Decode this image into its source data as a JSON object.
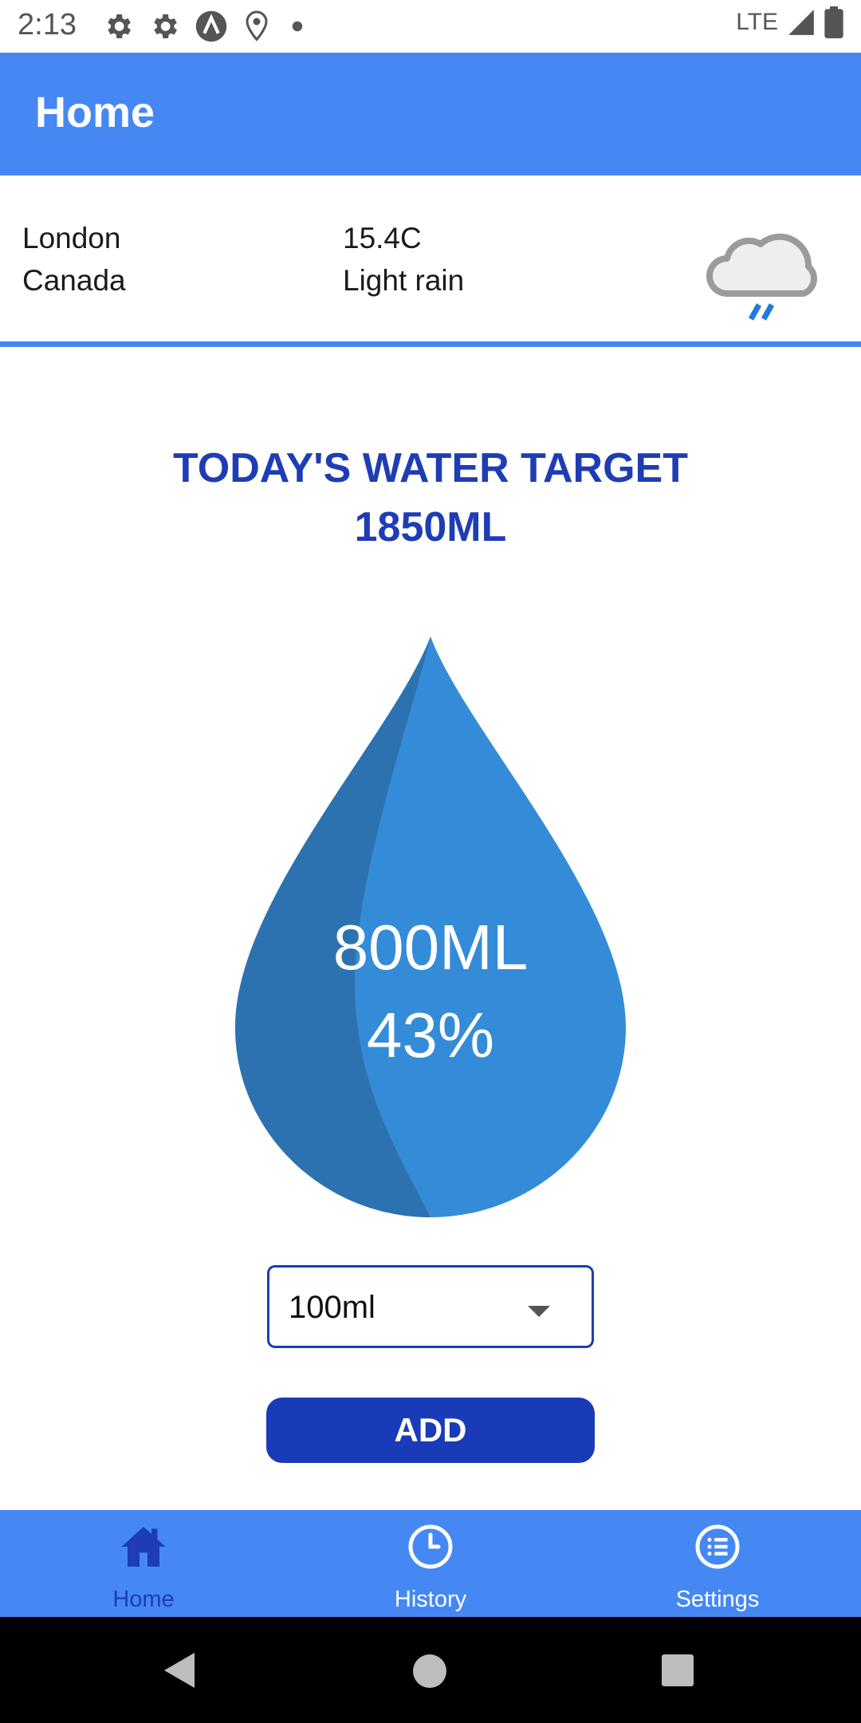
{
  "status_bar": {
    "time": "2:13",
    "network": "LTE",
    "icons": [
      "gear-icon",
      "gear-icon",
      "app-logo-icon",
      "location-pin-icon",
      "dot-icon",
      "signal-icon",
      "battery-icon"
    ]
  },
  "app_bar": {
    "title": "Home"
  },
  "weather": {
    "city": "London",
    "country": "Canada",
    "temperature": "15.4C",
    "condition": "Light rain",
    "icon": "rain-cloud-icon"
  },
  "target": {
    "line1": "TODAY'S WATER TARGET",
    "line2": "1850ML"
  },
  "progress": {
    "amount": "800ML",
    "percent_text": "43%",
    "percent": 43
  },
  "amount_select": {
    "selected": "100ml"
  },
  "add_button": {
    "label": "ADD"
  },
  "bottom_nav": {
    "items": [
      {
        "label": "Home",
        "icon": "home-icon",
        "active": true
      },
      {
        "label": "History",
        "icon": "clock-icon",
        "active": false
      },
      {
        "label": "Settings",
        "icon": "list-icon",
        "active": false
      }
    ]
  },
  "colors": {
    "primary": "#4588f4",
    "accent": "#1e3db5",
    "drop_light": "#348cd8",
    "drop_dark": "#2d72b0"
  }
}
